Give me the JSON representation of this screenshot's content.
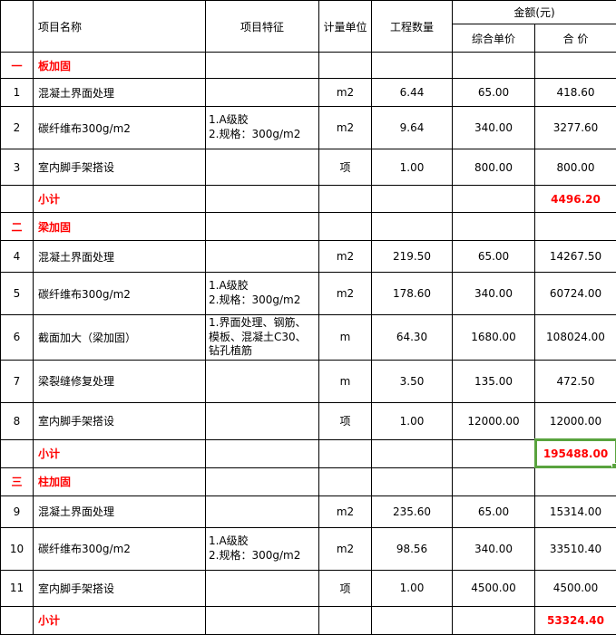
{
  "colors": {
    "accent_red": "#ff0000",
    "selection_green": "#59a33e",
    "grid_line": "#000000"
  },
  "table": {
    "headers": {
      "corner": "",
      "item_name": "项目名称",
      "feature": "项目特征",
      "unit": "计量单位",
      "quantity": "工程数量",
      "amount_group": "金额(元)",
      "unit_price": "综合单价",
      "total_price": "合 价"
    },
    "rows": [
      {
        "type": "section",
        "num": "一",
        "title": "板加固"
      },
      {
        "type": "item",
        "num": "1",
        "name": "混凝土界面处理",
        "feature": "",
        "unit": "m2",
        "qty": "6.44",
        "price": "65.00",
        "total": "418.60"
      },
      {
        "type": "item",
        "num": "2",
        "name": "碳纤维布300g/m2",
        "feature": "1.A级胶\n2.规格：300g/m2",
        "unit": "m2",
        "qty": "9.64",
        "price": "340.00",
        "total": "3277.60"
      },
      {
        "type": "item",
        "num": "3",
        "name": "室内脚手架搭设",
        "feature": "",
        "unit": "项",
        "qty": "1.00",
        "price": "800.00",
        "total": "800.00"
      },
      {
        "type": "subtotal",
        "label": "小计",
        "total": "4496.20"
      },
      {
        "type": "section",
        "num": "二",
        "title": "梁加固"
      },
      {
        "type": "item",
        "num": "4",
        "name": "混凝土界面处理",
        "feature": "",
        "unit": "m2",
        "qty": "219.50",
        "price": "65.00",
        "total": "14267.50"
      },
      {
        "type": "item",
        "num": "5",
        "name": "碳纤维布300g/m2",
        "feature": "1.A级胶\n2.规格：300g/m2",
        "unit": "m2",
        "qty": "178.60",
        "price": "340.00",
        "total": "60724.00"
      },
      {
        "type": "item",
        "num": "6",
        "name": "截面加大（梁加固）",
        "feature": "1.界面处理、钢筋、模板、混凝土C30、钻孔植筋",
        "unit": "m",
        "qty": "64.30",
        "price": "1680.00",
        "total": "108024.00"
      },
      {
        "type": "item",
        "num": "7",
        "name": "梁裂缝修复处理",
        "feature": "",
        "unit": "m",
        "qty": "3.50",
        "price": "135.00",
        "total": "472.50"
      },
      {
        "type": "item",
        "num": "8",
        "name": "室内脚手架搭设",
        "feature": "",
        "unit": "项",
        "qty": "1.00",
        "price": "12000.00",
        "total": "12000.00"
      },
      {
        "type": "subtotal",
        "label": "小计",
        "total": "195488.00",
        "selected": true
      },
      {
        "type": "section",
        "num": "三",
        "title": "柱加固"
      },
      {
        "type": "item",
        "num": "9",
        "name": "混凝土界面处理",
        "feature": "",
        "unit": "m2",
        "qty": "235.60",
        "price": "65.00",
        "total": "15314.00"
      },
      {
        "type": "item",
        "num": "10",
        "name": "碳纤维布300g/m2",
        "feature": "1.A级胶\n2.规格：300g/m2",
        "unit": "m2",
        "qty": "98.56",
        "price": "340.00",
        "total": "33510.40"
      },
      {
        "type": "item",
        "num": "11",
        "name": "室内脚手架搭设",
        "feature": "",
        "unit": "项",
        "qty": "1.00",
        "price": "4500.00",
        "total": "4500.00"
      },
      {
        "type": "subtotal",
        "label": "小计",
        "total": "53324.40"
      }
    ]
  }
}
